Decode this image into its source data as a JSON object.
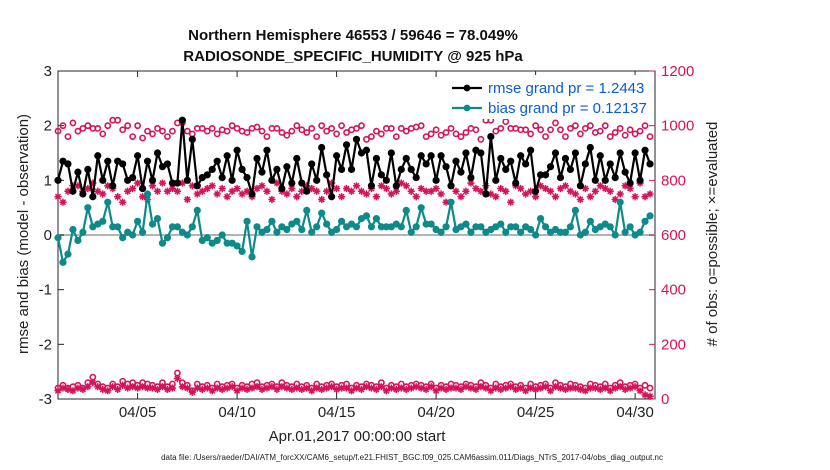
{
  "chart_data": {
    "type": "line",
    "title": "Northern Hemisphere 46553 / 59646 = 78.049%",
    "subtitle": "RADIOSONDE_SPECIFIC_HUMIDITY @ 925 hPa",
    "xlabel": "Apr.01,2017 00:00:00 start",
    "ylabel": "rmse and bias (model - observation)",
    "ylabel_right": "# of obs: o=possible; ×=evaluated",
    "xlim": [
      1,
      31
    ],
    "ylim": [
      -3,
      3
    ],
    "ylim_right": [
      0,
      1200
    ],
    "x_ticks": [
      5,
      10,
      15,
      20,
      25,
      30
    ],
    "x_tick_labels": [
      "04/05",
      "04/10",
      "04/15",
      "04/20",
      "04/25",
      "04/30"
    ],
    "y_ticks": [
      -3,
      -2,
      -1,
      0,
      1,
      2,
      3
    ],
    "y_tick_labels": [
      "-3",
      "-2",
      "-1",
      "0",
      "1",
      "2",
      "3"
    ],
    "y_ticks_right": [
      0,
      200,
      400,
      600,
      800,
      1000,
      1200
    ],
    "y_tick_labels_right": [
      "0",
      "200",
      "400",
      "600",
      "800",
      "1000",
      "1200"
    ],
    "colors": {
      "rmse": "#000000",
      "bias": "#0d8a8a",
      "counts": "#d4145a",
      "zero_line": "#b3b3b3",
      "legend_text": "#0b5cd5"
    },
    "legend": [
      {
        "key": "rmse",
        "label": "rmse grand pr = 1.2443"
      },
      {
        "key": "bias",
        "label": "bias grand pr = 0.12137"
      }
    ],
    "footnote": "data file: /Users/raeder/DAI/ATM_forcXX/CAM6_setup/f.e21.FHIST_BGC.f09_025.CAM6assim.011/Diags_NTrS_2017-04/obs_diag_output.nc",
    "x": [
      1.0,
      1.25,
      1.5,
      1.75,
      2.0,
      2.25,
      2.5,
      2.75,
      3.0,
      3.25,
      3.5,
      3.75,
      4.0,
      4.25,
      4.5,
      4.75,
      5.0,
      5.25,
      5.5,
      5.75,
      6.0,
      6.25,
      6.5,
      6.75,
      7.0,
      7.25,
      7.5,
      7.75,
      8.0,
      8.25,
      8.5,
      8.75,
      9.0,
      9.25,
      9.5,
      9.75,
      10.0,
      10.25,
      10.5,
      10.75,
      11.0,
      11.25,
      11.5,
      11.75,
      12.0,
      12.25,
      12.5,
      12.75,
      13.0,
      13.25,
      13.5,
      13.75,
      14.0,
      14.25,
      14.5,
      14.75,
      15.0,
      15.25,
      15.5,
      15.75,
      16.0,
      16.25,
      16.5,
      16.75,
      17.0,
      17.25,
      17.5,
      17.75,
      18.0,
      18.25,
      18.5,
      18.75,
      19.0,
      19.25,
      19.5,
      19.75,
      20.0,
      20.25,
      20.5,
      20.75,
      21.0,
      21.25,
      21.5,
      21.75,
      22.0,
      22.25,
      22.5,
      22.75,
      23.0,
      23.25,
      23.5,
      23.75,
      24.0,
      24.25,
      24.5,
      24.75,
      25.0,
      25.25,
      25.5,
      25.75,
      26.0,
      26.25,
      26.5,
      26.75,
      27.0,
      27.25,
      27.5,
      27.75,
      28.0,
      28.25,
      28.5,
      28.75,
      29.0,
      29.25,
      29.5,
      29.75,
      30.0,
      30.25,
      30.5,
      30.75
    ],
    "series": [
      {
        "name": "rmse",
        "values": [
          1.0,
          1.35,
          1.3,
          0.8,
          1.15,
          0.75,
          1.2,
          0.7,
          1.45,
          1.0,
          1.35,
          0.9,
          1.35,
          1.3,
          1.0,
          1.05,
          1.45,
          0.85,
          1.35,
          1.0,
          1.5,
          1.25,
          1.3,
          0.95,
          0.95,
          2.1,
          1.0,
          1.75,
          0.9,
          1.05,
          1.1,
          1.2,
          1.35,
          1.05,
          1.45,
          1.0,
          1.55,
          1.2,
          1.05,
          0.75,
          1.4,
          1.15,
          1.55,
          1.0,
          1.2,
          0.85,
          1.25,
          0.95,
          1.4,
          0.95,
          0.8,
          1.3,
          1.0,
          1.6,
          1.1,
          0.7,
          1.45,
          1.2,
          1.65,
          1.2,
          1.75,
          1.5,
          1.55,
          0.9,
          1.4,
          1.1,
          1.0,
          1.5,
          0.9,
          1.2,
          1.4,
          1.2,
          1.05,
          1.45,
          1.3,
          1.45,
          1.0,
          1.45,
          1.25,
          0.9,
          1.35,
          1.15,
          1.5,
          1.05,
          1.55,
          1.5,
          0.75,
          1.8,
          1.0,
          1.4,
          1.2,
          1.35,
          0.95,
          1.45,
          1.3,
          1.55,
          0.8,
          1.1,
          1.1,
          1.25,
          1.5,
          1.05,
          1.4,
          1.2,
          1.5,
          0.9,
          1.3,
          1.6,
          1.0,
          1.45,
          1.0,
          1.3,
          1.05,
          1.5,
          1.15,
          0.95,
          1.5,
          1.0,
          1.55,
          1.3
        ]
      },
      {
        "name": "bias",
        "values": [
          -0.05,
          -0.5,
          -0.35,
          0.1,
          -0.1,
          0.05,
          0.5,
          0.15,
          0.2,
          0.25,
          0.6,
          0.15,
          0.15,
          -0.05,
          0.05,
          0.0,
          0.25,
          0.05,
          0.75,
          0.2,
          0.3,
          -0.15,
          -0.05,
          0.15,
          0.15,
          0.05,
          0.0,
          0.15,
          0.45,
          -0.1,
          -0.05,
          -0.15,
          -0.1,
          0.0,
          -0.15,
          -0.15,
          -0.2,
          -0.3,
          0.25,
          -0.4,
          0.15,
          0.05,
          0.1,
          0.25,
          0.05,
          0.15,
          0.1,
          0.2,
          0.25,
          0.1,
          0.45,
          0.05,
          0.15,
          0.4,
          0.2,
          0.05,
          0.1,
          0.25,
          0.15,
          0.2,
          0.15,
          0.3,
          0.35,
          0.15,
          0.3,
          0.15,
          0.15,
          0.15,
          0.2,
          0.15,
          0.45,
          0.05,
          0.15,
          0.5,
          0.2,
          0.2,
          0.1,
          0.05,
          0.15,
          0.6,
          0.1,
          0.15,
          0.2,
          0.05,
          0.15,
          0.15,
          0.05,
          0.1,
          0.15,
          0.2,
          0.05,
          0.15,
          0.15,
          0.05,
          0.15,
          0.1,
          0.0,
          0.3,
          0.15,
          0.05,
          0.1,
          0.05,
          0.05,
          0.15,
          0.45,
          0.0,
          0.05,
          0.25,
          0.1,
          0.15,
          0.2,
          0.15,
          0.0,
          0.6,
          0.05,
          0.15,
          0.0,
          0.05,
          0.25,
          0.35
        ]
      },
      {
        "name": "possible",
        "axis": "right",
        "values": [
          980,
          1000,
          960,
          1010,
          980,
          990,
          1000,
          990,
          990,
          970,
          1000,
          1020,
          1020,
          985,
          1000,
          960,
          1000,
          955,
          980,
          970,
          990,
          980,
          960,
          980,
          1010,
          1010,
          980,
          970,
          990,
          990,
          980,
          990,
          970,
          985,
          980,
          1000,
          990,
          980,
          975,
          990,
          995,
          980,
          960,
          990,
          990,
          975,
          965,
          980,
          1000,
          985,
          975,
          990,
          960,
          1000,
          980,
          990,
          970,
          1000,
          975,
          985,
          990,
          1000,
          950,
          960,
          980,
          970,
          990,
          990,
          960,
          990,
          980,
          990,
          995,
          1000,
          960,
          970,
          985,
          965,
          975,
          990,
          970,
          960,
          975,
          990,
          985,
          950,
          1020,
          1020,
          980,
          990,
          1015,
          990,
          990,
          985,
          985,
          970,
          1000,
          985,
          960,
          985,
          1010,
          985,
          960,
          990,
          1000,
          970,
          990,
          1000,
          975,
          980,
          1000,
          960,
          975,
          990,
          965,
          985,
          970,
          980,
          1000,
          960
        ]
      },
      {
        "name": "evaluated",
        "axis": "right",
        "values": [
          740,
          720,
          760,
          780,
          780,
          760,
          770,
          790,
          760,
          750,
          780,
          770,
          740,
          720,
          760,
          770,
          790,
          740,
          730,
          780,
          760,
          790,
          760,
          770,
          760,
          790,
          730,
          780,
          750,
          760,
          770,
          780,
          750,
          770,
          740,
          760,
          770,
          750,
          760,
          740,
          770,
          780,
          760,
          730,
          790,
          760,
          750,
          770,
          740,
          760,
          780,
          770,
          760,
          730,
          760,
          790,
          770,
          740,
          770,
          760,
          780,
          760,
          750,
          770,
          740,
          780,
          770,
          750,
          760,
          790,
          780,
          760,
          740,
          770,
          760,
          760,
          770,
          750,
          720,
          780,
          760,
          740,
          760,
          790,
          770,
          760,
          780,
          750,
          740,
          770,
          760,
          720,
          780,
          770,
          750,
          760,
          740,
          780,
          770,
          760,
          740,
          770,
          780,
          760,
          750,
          730,
          770,
          740,
          760,
          780,
          770,
          760,
          730,
          750,
          780,
          770,
          740,
          790,
          740,
          750
        ]
      },
      {
        "name": "possible_low",
        "axis": "right",
        "values": [
          40,
          50,
          40,
          45,
          50,
          40,
          60,
          80,
          55,
          45,
          40,
          55,
          45,
          65,
          55,
          60,
          50,
          60,
          55,
          50,
          45,
          60,
          45,
          55,
          95,
          60,
          50,
          30,
          55,
          45,
          50,
          40,
          55,
          45,
          50,
          55,
          40,
          50,
          45,
          55,
          60,
          45,
          50,
          55,
          45,
          60,
          50,
          45,
          55,
          45,
          50,
          40,
          55,
          45,
          50,
          55,
          45,
          50,
          55,
          40,
          50,
          45,
          55,
          50,
          45,
          60,
          40,
          50,
          45,
          55,
          45,
          50,
          55,
          50,
          45,
          55,
          40,
          50,
          45,
          55,
          50,
          45,
          55,
          50,
          45,
          60,
          50,
          40,
          55,
          45,
          50,
          55,
          45,
          50,
          40,
          55,
          45,
          50,
          55,
          40,
          60,
          50,
          45,
          55,
          50,
          45,
          40,
          55,
          50,
          45,
          55,
          40,
          50,
          60,
          45,
          50,
          55,
          40,
          50,
          40
        ]
      },
      {
        "name": "evaluated_low",
        "axis": "right",
        "values": [
          30,
          40,
          35,
          30,
          40,
          35,
          45,
          60,
          45,
          35,
          30,
          45,
          35,
          50,
          40,
          45,
          40,
          45,
          40,
          40,
          35,
          45,
          35,
          40,
          75,
          45,
          40,
          25,
          40,
          35,
          40,
          30,
          40,
          35,
          40,
          45,
          30,
          40,
          35,
          40,
          45,
          35,
          40,
          45,
          35,
          45,
          40,
          35,
          40,
          35,
          40,
          30,
          40,
          35,
          40,
          45,
          35,
          40,
          40,
          30,
          40,
          35,
          45,
          40,
          35,
          45,
          30,
          40,
          35,
          40,
          35,
          40,
          45,
          40,
          35,
          45,
          30,
          40,
          35,
          40,
          40,
          35,
          45,
          40,
          35,
          45,
          40,
          30,
          40,
          35,
          40,
          45,
          35,
          40,
          30,
          40,
          35,
          40,
          45,
          30,
          45,
          40,
          35,
          40,
          40,
          35,
          30,
          40,
          40,
          35,
          40,
          30,
          40,
          45,
          35,
          40,
          45,
          30,
          15,
          10
        ]
      }
    ]
  }
}
